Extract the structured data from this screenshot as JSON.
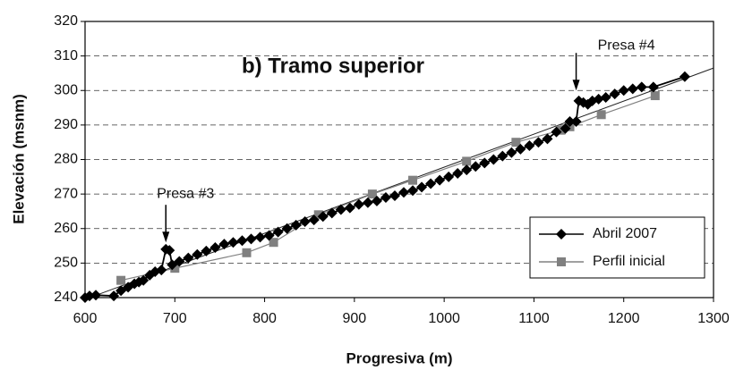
{
  "chart_data": {
    "type": "line",
    "title": "b) Tramo superior",
    "x_label": "Progresiva (m)",
    "y_label": "Elevación (msnm)",
    "xlim": [
      600,
      1300
    ],
    "xticks": [
      600,
      700,
      800,
      900,
      1000,
      1100,
      1200,
      1300
    ],
    "ylim": [
      240,
      320
    ],
    "yticks": [
      240,
      250,
      260,
      270,
      280,
      290,
      300,
      310,
      320
    ],
    "grid": true,
    "legend": "lower right",
    "series": [
      {
        "name": "Abril 2007",
        "color": "#000000",
        "marker": "diamond",
        "x": [
          600,
          605,
          612,
          632,
          640,
          648,
          655,
          660,
          665,
          672,
          678,
          685,
          690,
          694,
          697,
          705,
          715,
          725,
          735,
          745,
          755,
          765,
          775,
          785,
          795,
          805,
          815,
          825,
          835,
          845,
          855,
          865,
          875,
          885,
          895,
          905,
          915,
          925,
          935,
          945,
          955,
          965,
          975,
          985,
          995,
          1005,
          1015,
          1025,
          1035,
          1045,
          1055,
          1065,
          1075,
          1085,
          1095,
          1105,
          1115,
          1125,
          1135,
          1140,
          1147,
          1150,
          1155,
          1160,
          1165,
          1172,
          1180,
          1190,
          1200,
          1210,
          1220,
          1233,
          1268
        ],
        "values": [
          240,
          240.5,
          240.7,
          240.5,
          242,
          243,
          244,
          244.5,
          245,
          246.5,
          247.5,
          248,
          254,
          253.7,
          249.5,
          250.5,
          251.5,
          252.5,
          253.5,
          254.5,
          255.5,
          256,
          256.5,
          257,
          257.5,
          258,
          259,
          260,
          261,
          262,
          262.5,
          263.5,
          264.5,
          265.5,
          266,
          267,
          267.5,
          268,
          269,
          269.5,
          270.5,
          271,
          272,
          273,
          274,
          275,
          276,
          277,
          278,
          279,
          280,
          281,
          282,
          283,
          284,
          285,
          286,
          288,
          289,
          291,
          291,
          297,
          296.5,
          296,
          297,
          297.5,
          298,
          299,
          300,
          300.5,
          301,
          301,
          304
        ]
      },
      {
        "name": "Perfil inicial",
        "color": "#808080",
        "marker": "square",
        "x": [
          640,
          700,
          780,
          810,
          860,
          920,
          965,
          1025,
          1080,
          1130,
          1140,
          1175,
          1235
        ],
        "values": [
          245,
          248.5,
          253,
          256,
          264,
          270,
          274,
          279.5,
          285,
          288.5,
          289.5,
          293,
          298.5
        ]
      }
    ],
    "trend_line": {
      "x": [
        600,
        1300
      ],
      "values": [
        239.5,
        306.5
      ]
    },
    "annotations": [
      {
        "text": "Presa #3",
        "x": 690,
        "y": 256
      },
      {
        "text": "Presa #4",
        "x": 1147,
        "y": 300
      }
    ]
  }
}
